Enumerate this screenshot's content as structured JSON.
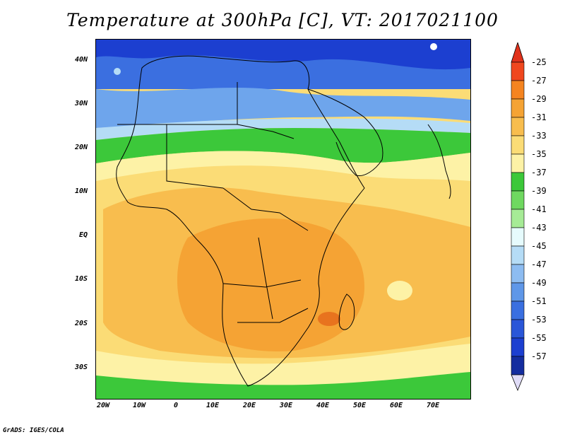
{
  "title": "Temperature at 300hPa [C], VT: 2017021100",
  "footer": "GrADS: IGES/COLA",
  "map": {
    "lat_labels": [
      "40N",
      "30N",
      "20N",
      "10N",
      "EQ",
      "10S",
      "20S",
      "30S"
    ],
    "lon_labels": [
      "20W",
      "10W",
      "0",
      "10E",
      "20E",
      "30E",
      "40E",
      "50E",
      "60E",
      "70E"
    ],
    "colors": {
      "deep_blue": "#1c3fd0",
      "mid_blue": "#3b6fe0",
      "light_blue": "#6ea5ec",
      "pale_blue": "#b5dcf6",
      "green": "#3cc83a",
      "light_green": "#8ee47a",
      "pale_yellow": "#fdf2a6",
      "yellow": "#fbdc76",
      "orange_light": "#f8bd4e",
      "orange": "#f5a334",
      "dark_orange": "#e8731e",
      "red": "#d42b1b"
    }
  },
  "colorbar": {
    "labels": [
      "-25",
      "-27",
      "-29",
      "-31",
      "-33",
      "-35",
      "-37",
      "-39",
      "-41",
      "-43",
      "-45",
      "-47",
      "-49",
      "-51",
      "-53",
      "-55",
      "-57"
    ],
    "colors": [
      "#f0471e",
      "#f58420",
      "#f5a334",
      "#f8bd4e",
      "#fbdc76",
      "#fdf2a6",
      "#3cc83a",
      "#6fd860",
      "#a6eb96",
      "#e6fbfd",
      "#b5dcf6",
      "#8dbcf1",
      "#5f97e8",
      "#3a6fe0",
      "#2a56d8",
      "#1c3fd0",
      "#142d9f"
    ],
    "top_arrow_color": "#e1321b",
    "bottom_arrow_color": "#e0dcf7"
  }
}
